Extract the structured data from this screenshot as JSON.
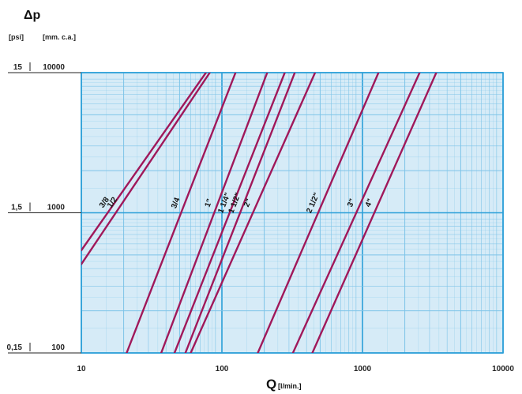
{
  "chart_data": {
    "type": "line",
    "xscale": "log",
    "yscale": "log",
    "xlim": [
      10,
      10000
    ],
    "ylim": [
      100,
      10000
    ],
    "grid": true,
    "ylabel": "Δp",
    "ylabel_units": [
      "[psi]",
      "[mm. c.a.]"
    ],
    "xlabel": "Q",
    "xlabel_units": "[l/min.]",
    "x_ticks": [
      {
        "value": 10,
        "label": "10"
      },
      {
        "value": 100,
        "label": "100"
      },
      {
        "value": 1000,
        "label": "1000"
      },
      {
        "value": 10000,
        "label": "10000"
      }
    ],
    "y_ticks": [
      {
        "value": 10000,
        "psi": "15",
        "mm": "10000"
      },
      {
        "value": 1000,
        "psi": "1,5",
        "mm": "1000"
      },
      {
        "value": 100,
        "psi": "0,15",
        "mm": "100"
      }
    ],
    "series": [
      {
        "name": "3/8",
        "x": [
          10,
          77
        ],
        "y": [
          540,
          10000
        ]
      },
      {
        "name": "1/2",
        "x": [
          10,
          82
        ],
        "y": [
          430,
          10000
        ]
      },
      {
        "name": "3/4",
        "x": [
          21,
          125
        ],
        "y": [
          100,
          10000
        ]
      },
      {
        "name": "1\"",
        "x": [
          37,
          210
        ],
        "y": [
          100,
          10000
        ]
      },
      {
        "name": "1 1/4\"",
        "x": [
          46,
          280
        ],
        "y": [
          100,
          10000
        ]
      },
      {
        "name": "1 1/2\"",
        "x": [
          55,
          330
        ],
        "y": [
          100,
          10000
        ]
      },
      {
        "name": "2\"",
        "x": [
          60,
          460
        ],
        "y": [
          100,
          10000
        ]
      },
      {
        "name": "2 1/2\"",
        "x": [
          180,
          1300
        ],
        "y": [
          100,
          10000
        ]
      },
      {
        "name": "3\"",
        "x": [
          320,
          2550
        ],
        "y": [
          100,
          10000
        ]
      },
      {
        "name": "4\"",
        "x": [
          440,
          3350
        ],
        "y": [
          100,
          10000
        ]
      }
    ]
  },
  "colors": {
    "background": "#d6ebf7",
    "grid_minor": "#7ec4e8",
    "grid_major": "#2a9fd8",
    "series": "#a0185a"
  }
}
